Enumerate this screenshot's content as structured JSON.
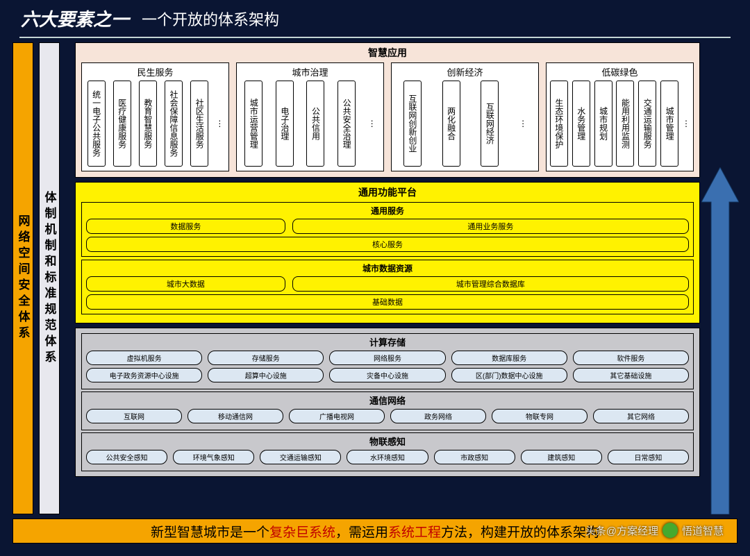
{
  "header": {
    "title1": "六大要素之一",
    "title2": "一个开放的体系架构"
  },
  "colors": {
    "bg": "#0a1533",
    "orange": "#f5a400",
    "yellow": "#fff200",
    "pink": "#f7e4d9",
    "gray": "#c8c8cc",
    "pill": "#dce7f2",
    "arrow": "#3a6fb0"
  },
  "pillar_left": "网络空间安全体系",
  "pillar_right": "体制机制和标准规范体系",
  "layer_apps": {
    "title": "智慧应用",
    "groups": [
      {
        "title": "民生服务",
        "items": [
          "统一电子公共服务",
          "医疗健康服务",
          "教育智慧服务",
          "社会保障信息服务",
          "社区生活服务"
        ]
      },
      {
        "title": "城市治理",
        "items": [
          "城市运营管理",
          "电子治理",
          "公共信用",
          "公共安全治理"
        ]
      },
      {
        "title": "创新经济",
        "items": [
          "互联网创新创业",
          "两化融合",
          "互联网经济"
        ]
      },
      {
        "title": "低碳绿色",
        "items": [
          "生态环境保护",
          "水务管理",
          "城市规划",
          "能用利用监测",
          "交通运输服务",
          "城市管理"
        ]
      }
    ]
  },
  "layer_platform": {
    "title": "通用功能平台",
    "sub1": {
      "title": "通用服务",
      "row1": [
        "数据服务",
        "通用业务服务"
      ],
      "row2": [
        "核心服务"
      ]
    },
    "sub2": {
      "title": "城市数据资源",
      "row1": [
        "城市大数据",
        "城市管理综合数据库"
      ],
      "row2": [
        "基础数据"
      ]
    }
  },
  "layer_infra": {
    "panel1": {
      "title": "计算存储",
      "row1": [
        "虚拟机服务",
        "存储服务",
        "网络服务",
        "数据库服务",
        "软件服务"
      ],
      "row2": [
        "电子政务资源中心设施",
        "超算中心设施",
        "灾备中心设施",
        "区(部门)数据中心设施",
        "其它基础设施"
      ]
    },
    "panel2": {
      "title": "通信网络",
      "row1": [
        "互联网",
        "移动通信网",
        "广播电视网",
        "政务网络",
        "物联专网",
        "其它网络"
      ]
    },
    "panel3": {
      "title": "物联感知",
      "row1": [
        "公共安全感知",
        "环境气象感知",
        "交通运输感知",
        "水环境感知",
        "市政感知",
        "建筑感知",
        "日常感知"
      ]
    }
  },
  "bottom": {
    "t1": "新型智慧城市是一个",
    "r1": "复杂巨系统",
    "t2": "，需运用",
    "r2": "系统工程",
    "t3": "方法，构建开放的体系架构"
  },
  "watermark": {
    "left": "头条@方案经理",
    "right": "悟道智慧"
  }
}
